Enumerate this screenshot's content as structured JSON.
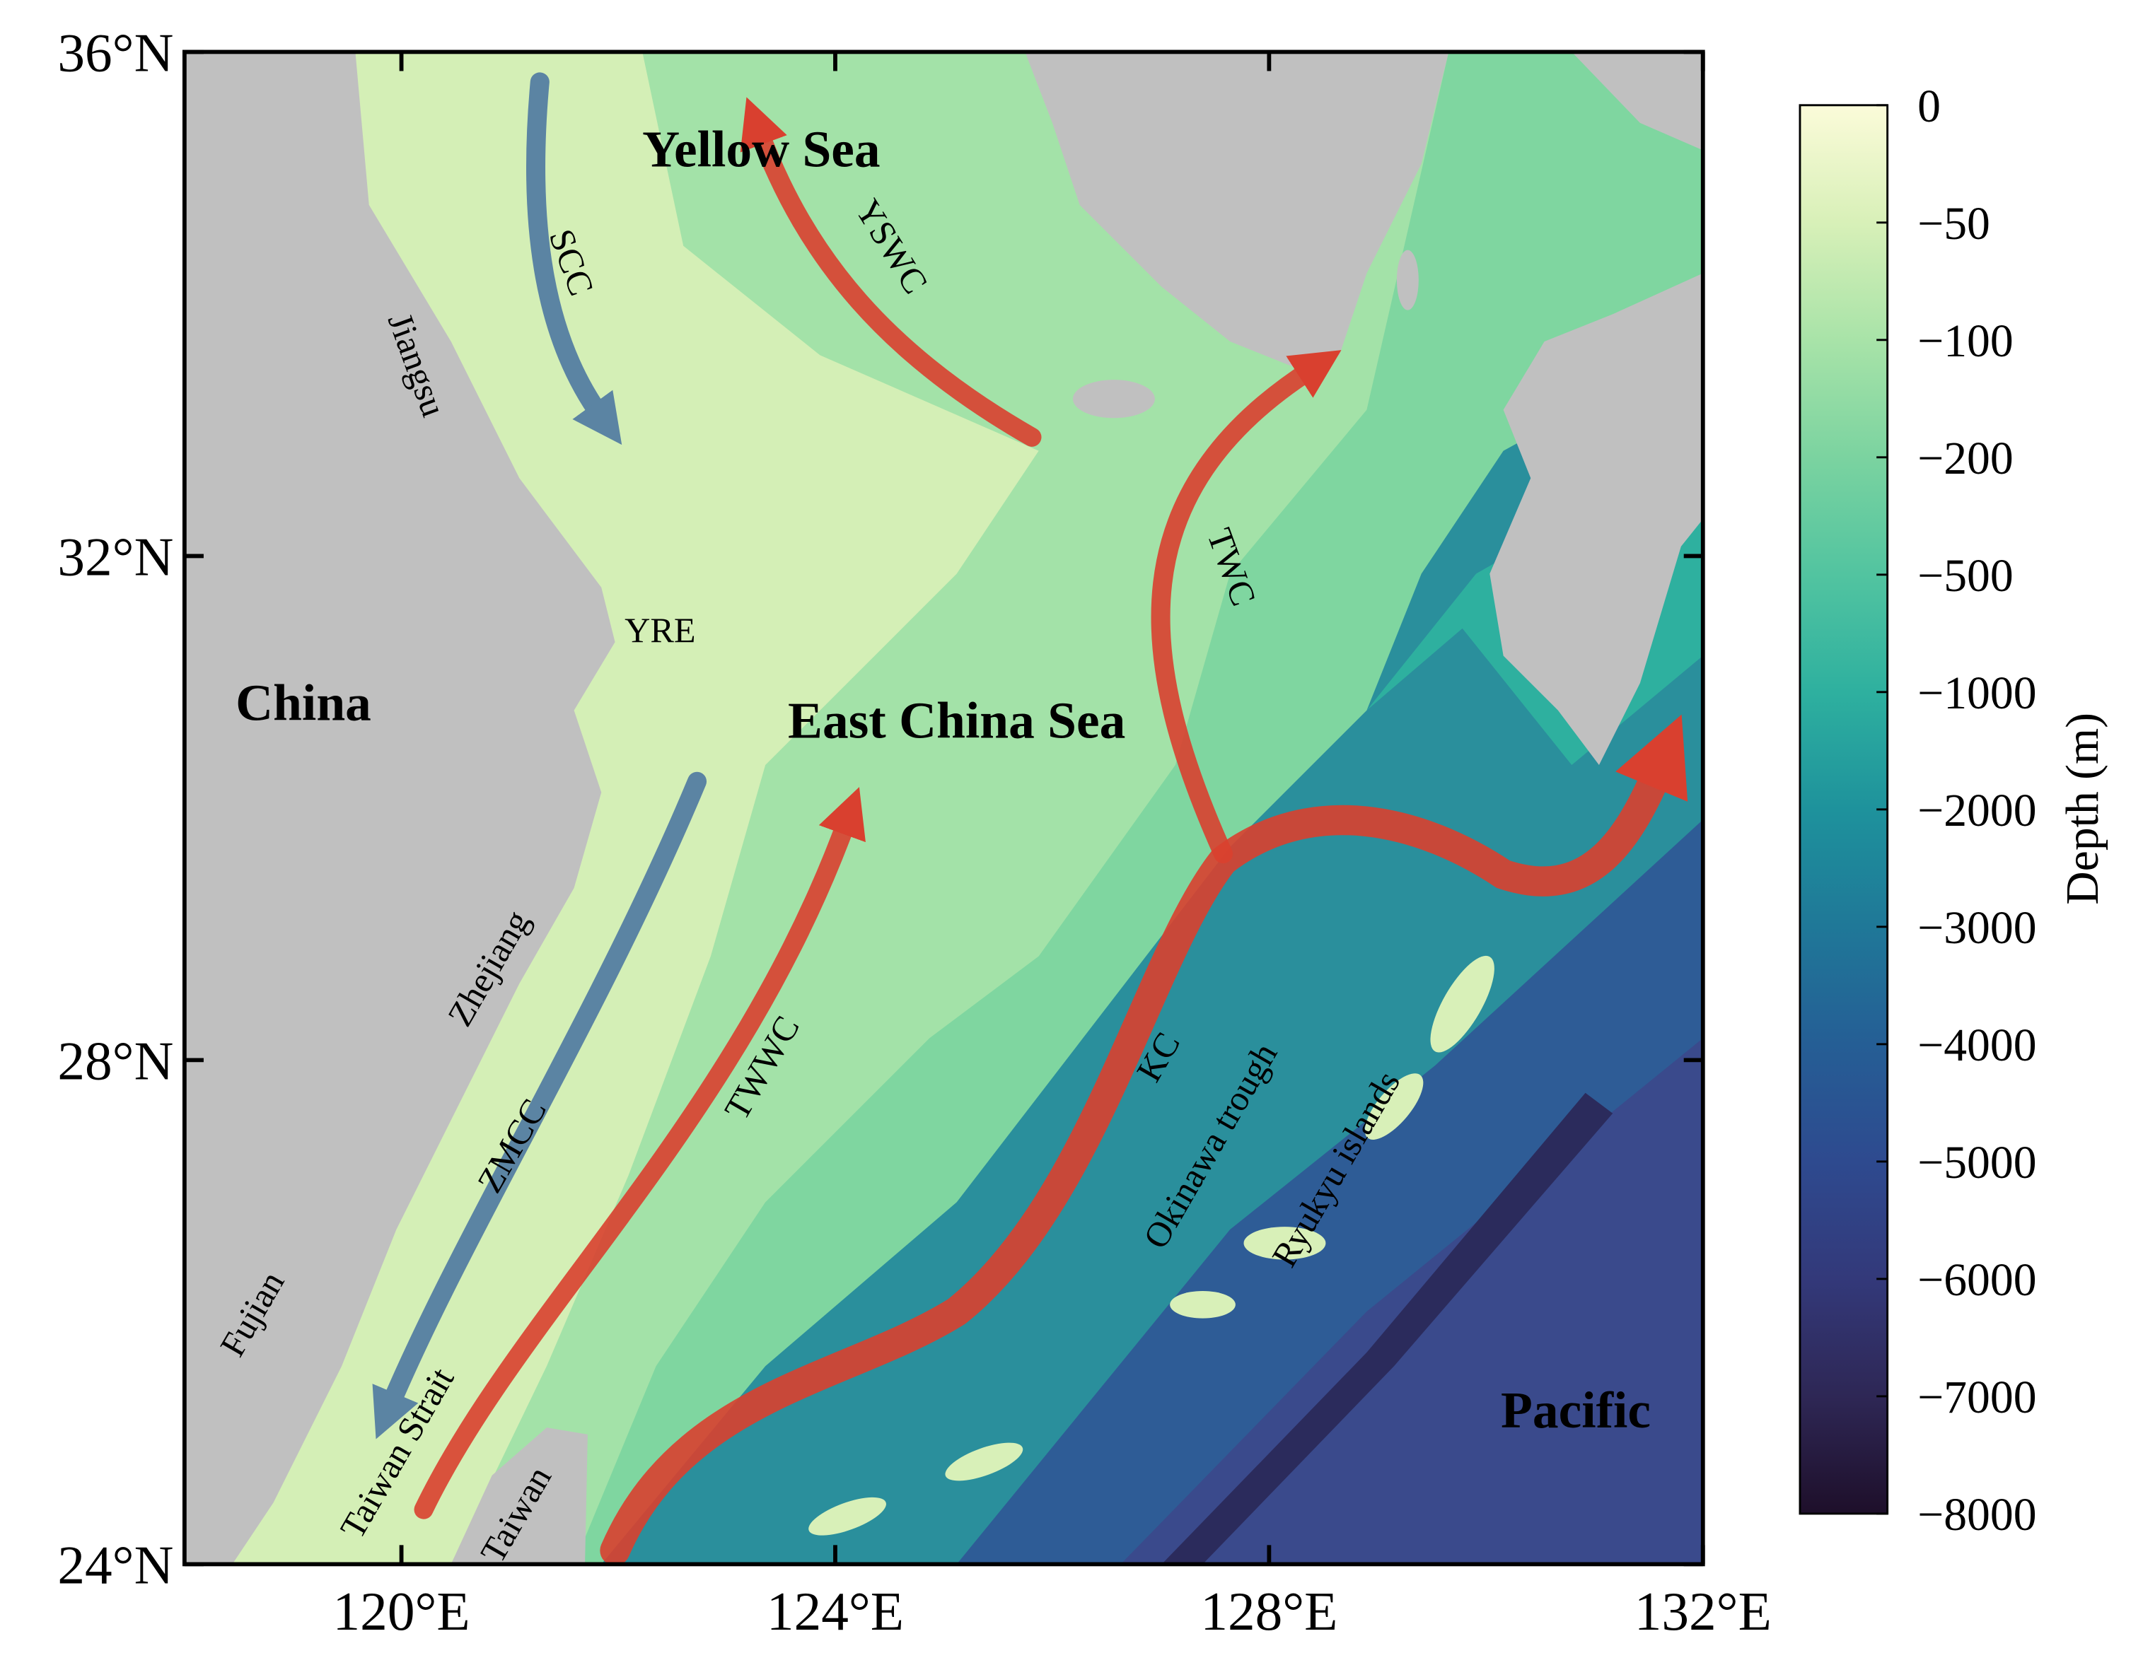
{
  "map": {
    "xlim": [
      118,
      132
    ],
    "ylim": [
      24,
      36
    ],
    "xticks": [
      {
        "value": 120,
        "label": "120°E"
      },
      {
        "value": 124,
        "label": "124°E"
      },
      {
        "value": 128,
        "label": "128°E"
      },
      {
        "value": 132,
        "label": "132°E"
      }
    ],
    "yticks": [
      {
        "value": 24,
        "label": "24°N"
      },
      {
        "value": 28,
        "label": "28°N"
      },
      {
        "value": 32,
        "label": "32°N"
      },
      {
        "value": 36,
        "label": "36°N"
      }
    ]
  },
  "labels": {
    "yellow_sea": "Yellow Sea",
    "east_china_sea": "East China Sea",
    "china": "China",
    "pacific": "Pacific",
    "yre": "YRE",
    "scc": "SCC",
    "yswc": "YSWC",
    "jiangsu": "Jiangsu",
    "twc": "TWC",
    "kc": "KC",
    "okinawa": "Okinawa trough",
    "ryukyu": "Ryukyu islands",
    "twwc": "TWWC",
    "zmcc": "ZMCC",
    "zhejiang": "Zhejiang",
    "fujian": "Fujian",
    "taiwan_strait": "Taiwan Strait",
    "taiwan": "Taiwan"
  },
  "colorbar": {
    "title": "Depth (m)",
    "ticks": [
      0,
      {
        "value": -50,
        "label": "−50"
      },
      {
        "value": -100,
        "label": "−100"
      },
      {
        "value": -200,
        "label": "−200"
      },
      {
        "value": -500,
        "label": "−500"
      },
      {
        "value": -1000,
        "label": "−1000"
      },
      {
        "value": -2000,
        "label": "−2000"
      },
      {
        "value": -3000,
        "label": "−3000"
      },
      {
        "value": -4000,
        "label": "−4000"
      },
      {
        "value": -5000,
        "label": "−5000"
      },
      {
        "value": -6000,
        "label": "−6000"
      },
      {
        "value": -7000,
        "label": "−7000"
      },
      {
        "value": -8000,
        "label": "−8000"
      }
    ]
  }
}
